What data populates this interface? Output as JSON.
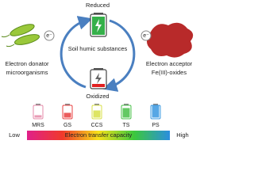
{
  "diagram": {
    "top_label": "Reduced",
    "center_label": "Soil humic substances",
    "bottom_label": "Oxidized",
    "left_label": [
      "Electron donator",
      "microorganisms"
    ],
    "right_label": [
      "Electron acceptor",
      "Fe(III)-oxides"
    ],
    "electron_symbol": "e⁻",
    "scale": {
      "title": "Electron transfer capacity",
      "low": "Low",
      "high": "High",
      "items": [
        "MRS",
        "GS",
        "CCS",
        "TS",
        "PS"
      ]
    }
  }
}
